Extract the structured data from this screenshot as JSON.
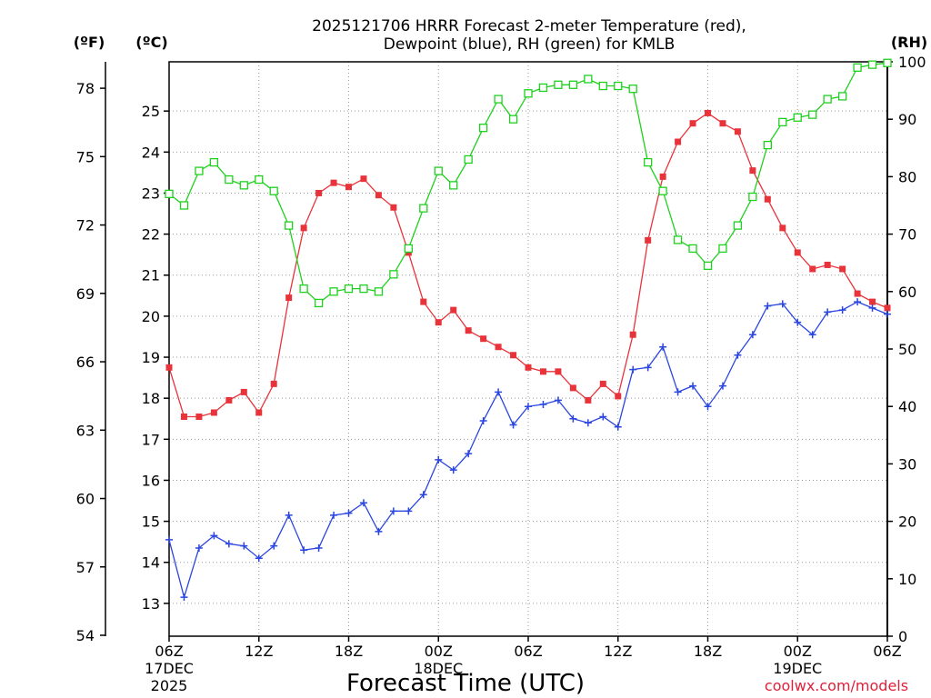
{
  "chart_data": {
    "type": "line",
    "title_line1": "2025121706 HRRR Forecast 2-meter Temperature (red),",
    "title_line2": "Dewpoint (blue), RH (green) for KMLB",
    "xlabel": "Forecast Time (UTC)",
    "credit": "coolwx.com/models",
    "units": {
      "fahrenheit": "(ºF)",
      "celsius": "(ºC)",
      "rh": "(RH)"
    },
    "x_ticks": [
      {
        "hour": 0,
        "label": "06Z",
        "day": "17DEC",
        "year": "2025"
      },
      {
        "hour": 6,
        "label": "12Z"
      },
      {
        "hour": 12,
        "label": "18Z"
      },
      {
        "hour": 18,
        "label": "00Z",
        "day": "18DEC"
      },
      {
        "hour": 24,
        "label": "06Z"
      },
      {
        "hour": 30,
        "label": "12Z"
      },
      {
        "hour": 36,
        "label": "18Z"
      },
      {
        "hour": 42,
        "label": "00Z",
        "day": "19DEC"
      },
      {
        "hour": 48,
        "label": "06Z"
      }
    ],
    "x_range_hours": [
      0,
      48
    ],
    "celsius_axis": {
      "min": 12.2,
      "max": 26.2,
      "ticks": [
        13,
        14,
        15,
        16,
        17,
        18,
        19,
        20,
        21,
        22,
        23,
        24,
        25
      ]
    },
    "fahrenheit_axis": {
      "ticks": [
        54,
        57,
        60,
        63,
        66,
        69,
        72,
        75,
        78
      ]
    },
    "rh_axis": {
      "min": 0,
      "max": 100,
      "ticks": [
        0,
        10,
        20,
        30,
        40,
        50,
        60,
        70,
        80,
        90,
        100
      ]
    },
    "series": [
      {
        "name": "Temperature",
        "axis": "celsius",
        "color": "#e8333a",
        "marker": "filled-square",
        "values": [
          18.75,
          17.55,
          17.55,
          17.65,
          17.95,
          18.15,
          17.65,
          18.35,
          20.45,
          22.15,
          23.0,
          23.25,
          23.15,
          23.35,
          22.95,
          22.65,
          21.55,
          20.35,
          19.85,
          20.15,
          19.65,
          19.45,
          19.25,
          19.05,
          18.75,
          18.65,
          18.65,
          18.25,
          17.95,
          18.35,
          18.05,
          19.55,
          21.85,
          23.4,
          24.25,
          24.7,
          24.95,
          24.7,
          24.5,
          23.55,
          22.85,
          22.15,
          21.55,
          21.15,
          21.25,
          21.15,
          20.55,
          20.35,
          20.2
        ]
      },
      {
        "name": "Dewpoint",
        "axis": "celsius",
        "color": "#2a46e0",
        "marker": "plus",
        "values": [
          14.55,
          13.15,
          14.35,
          14.65,
          14.45,
          14.4,
          14.1,
          14.4,
          15.15,
          14.3,
          14.35,
          15.15,
          15.2,
          15.45,
          14.75,
          15.25,
          15.25,
          15.65,
          16.5,
          16.25,
          16.65,
          17.45,
          18.15,
          17.35,
          17.8,
          17.85,
          17.95,
          17.5,
          17.4,
          17.55,
          17.3,
          18.7,
          18.75,
          19.25,
          18.15,
          18.3,
          17.8,
          18.3,
          19.05,
          19.55,
          20.25,
          20.3,
          19.85,
          19.55,
          20.1,
          20.15,
          20.35,
          20.2,
          20.05
        ]
      },
      {
        "name": "RH",
        "axis": "rh",
        "color": "#1ed11e",
        "marker": "open-square",
        "values": [
          77,
          75,
          81,
          82.5,
          79.5,
          78.5,
          79.5,
          77.5,
          71.5,
          60.5,
          58,
          60,
          60.5,
          60.5,
          60,
          63,
          67.5,
          74.5,
          81,
          78.5,
          83,
          88.5,
          93.5,
          90,
          94.5,
          95.5,
          96,
          96,
          97,
          95.8,
          95.8,
          95.3,
          82.5,
          77.5,
          69,
          67.5,
          64.5,
          67.5,
          71.5,
          76.5,
          85.5,
          89.5,
          90.3,
          90.8,
          93.5,
          94,
          99,
          99.5,
          99.8
        ]
      }
    ],
    "grid": true
  }
}
